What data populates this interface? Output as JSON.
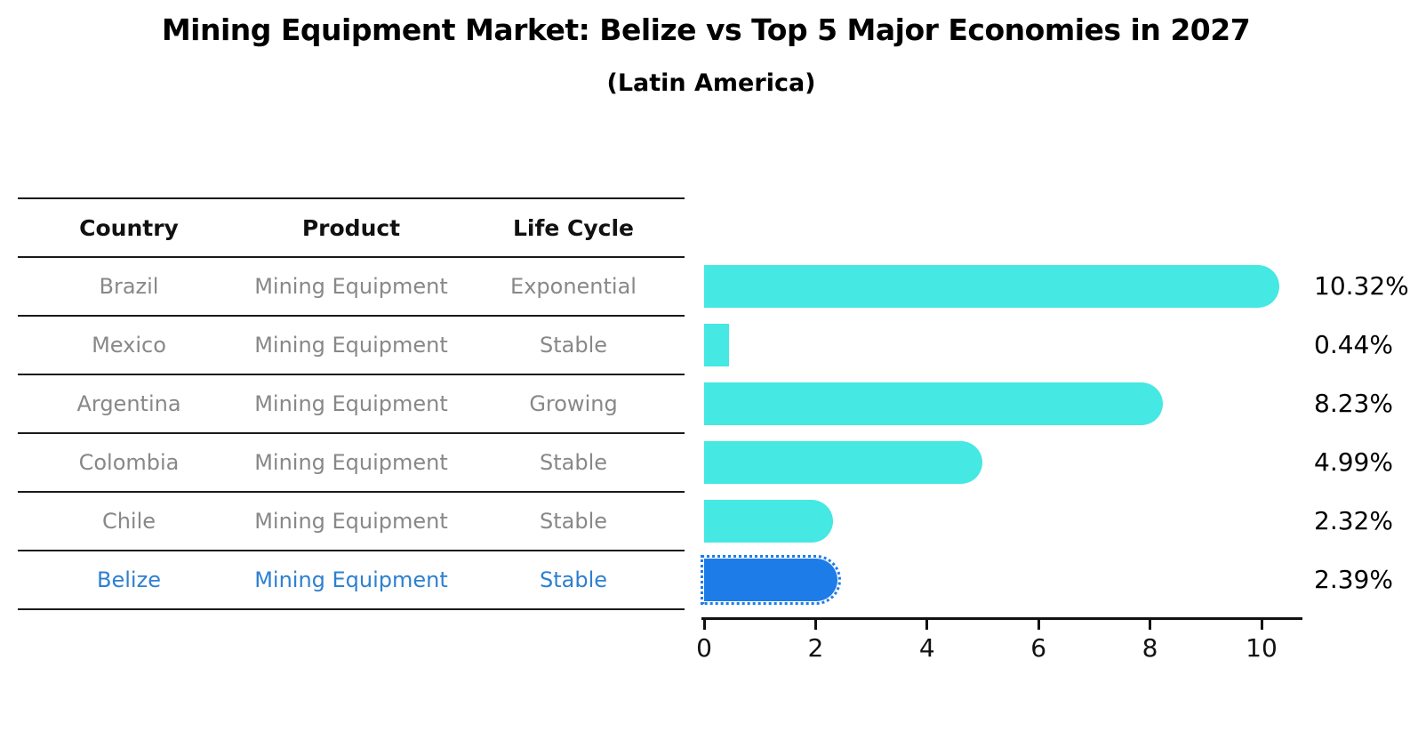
{
  "header": {
    "title": "Mining Equipment Market: Belize vs Top 5 Major Economies in 2027",
    "subtitle": "(Latin America)"
  },
  "table": {
    "columns": [
      "Country",
      "Product",
      "Life Cycle"
    ],
    "rows": [
      {
        "country": "Brazil",
        "product": "Mining Equipment",
        "life_cycle": "Exponential",
        "highlight": false
      },
      {
        "country": "Mexico",
        "product": "Mining Equipment",
        "life_cycle": "Stable",
        "highlight": false
      },
      {
        "country": "Argentina",
        "product": "Mining Equipment",
        "life_cycle": "Growing",
        "highlight": false
      },
      {
        "country": "Colombia",
        "product": "Mining Equipment",
        "life_cycle": "Stable",
        "highlight": false
      },
      {
        "country": "Chile",
        "product": "Mining Equipment",
        "life_cycle": "Stable",
        "highlight": false
      },
      {
        "country": "Belize",
        "product": "Mining Equipment",
        "life_cycle": "Stable",
        "highlight": true
      }
    ]
  },
  "chart_data": {
    "type": "bar",
    "orientation": "horizontal",
    "title": "Mining Equipment Market: Belize vs Top 5 Major Economies in 2027",
    "subtitle": "(Latin America)",
    "categories": [
      "Brazil",
      "Mexico",
      "Argentina",
      "Colombia",
      "Chile",
      "Belize"
    ],
    "values": [
      10.32,
      0.44,
      8.23,
      4.99,
      2.32,
      2.39
    ],
    "value_labels": [
      "10.32%",
      "0.44%",
      "8.23%",
      "4.99%",
      "2.32%",
      "2.39%"
    ],
    "highlight_index": 5,
    "xlim": [
      0,
      10.65
    ],
    "xticks": [
      0,
      2,
      4,
      6,
      8,
      10
    ],
    "grid": false,
    "legend": "none"
  },
  "colors": {
    "bar": "#45E8E2",
    "highlight_bar": "#1E7CE8",
    "highlight_text": "#2E80D0",
    "row_text": "#888888",
    "header_text": "#111111",
    "axis": "#111111"
  }
}
